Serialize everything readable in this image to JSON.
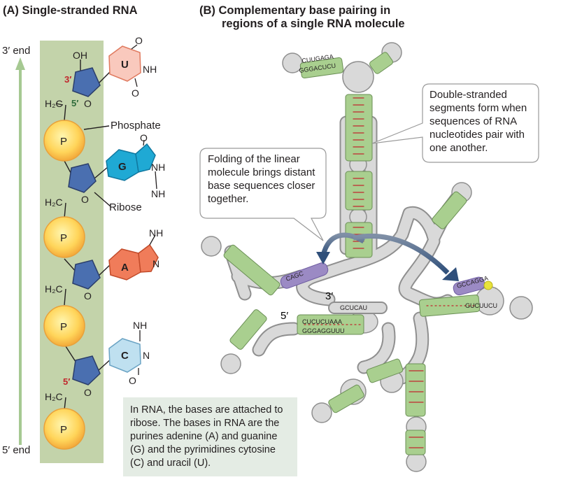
{
  "panel_a": {
    "title": "(A)  Single-stranded RNA",
    "end_3": "3′ end",
    "end_5": "5′ end",
    "phosphate_label": "Phosphate",
    "ribose_label": "Ribose",
    "prime_3": "3′",
    "prime_5": "5′",
    "prime_5_bottom": "5′",
    "oh": "OH",
    "h2c": "H₂C",
    "o": "O",
    "p": "P",
    "nh": "NH",
    "n": "N",
    "bases": [
      "U",
      "G",
      "A",
      "C"
    ],
    "base_colors": {
      "U": "#f9c9bd",
      "G": "#1fa9d4",
      "A": "#f07c5a",
      "C": "#bfe0f0"
    },
    "note": "In RNA, the bases are attached to ribose. The bases in RNA are the purines adenine (A) and guanine (G) and the pyrimidines cytosine (C) and uracil (U)."
  },
  "panel_b": {
    "title_line1": "(B)  Complementary base pairing in",
    "title_line2": "regions of a single RNA molecule",
    "callout_right": "Double-stranded segments form when sequences of RNA nucleotides pair with one another.",
    "callout_left": "Folding of the linear molecule brings distant base sequences closer together.",
    "label_5": "5′",
    "label_3": "3′",
    "seq_top_1": "CUUGAGA",
    "seq_top_2": "GGGACUCU",
    "seq_5end_1": "CUCUCUAAA",
    "seq_5end_2": "GGGAGGUUU",
    "seq_3end": "GCUCAU",
    "seq_left": "CAGC",
    "seq_right_1": "GCCAGGA",
    "seq_right_2": "GUCUUCU",
    "colors": {
      "paired": "#a9cf8f",
      "unpaired": "#d9d9d9",
      "purple": "#9b8ac4",
      "yellow": "#e8e23a",
      "bond": "#c1272d",
      "arrow": "#2f4f7a"
    }
  }
}
